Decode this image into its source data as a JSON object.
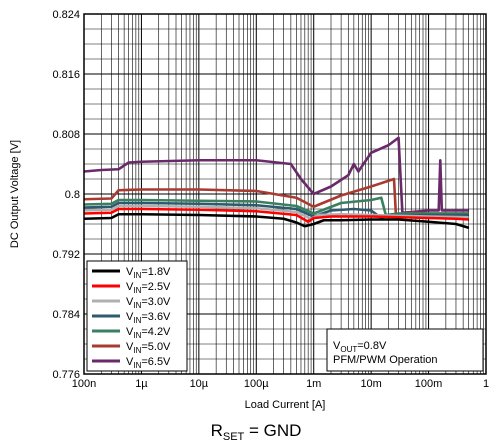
{
  "chart_data": {
    "type": "line",
    "title": "",
    "caption": {
      "main": "R",
      "sub": "SET",
      "rest": " = GND"
    },
    "xlabel": "Load Current [A]",
    "ylabel": "DC Output Voltage [V]",
    "xscale": "log",
    "xlim": [
      1e-07,
      1
    ],
    "ylim": [
      0.776,
      0.824
    ],
    "yticks": [
      {
        "value": 0.776,
        "label": "0.776"
      },
      {
        "value": 0.784,
        "label": "0.784"
      },
      {
        "value": 0.792,
        "label": "0.792"
      },
      {
        "value": 0.8,
        "label": "0.8"
      },
      {
        "value": 0.808,
        "label": "0.808"
      },
      {
        "value": 0.816,
        "label": "0.816"
      },
      {
        "value": 0.824,
        "label": "0.824"
      }
    ],
    "xticks": [
      {
        "value": 1e-07,
        "label": "100n"
      },
      {
        "value": 1e-06,
        "label": "1µ"
      },
      {
        "value": 1e-05,
        "label": "10µ"
      },
      {
        "value": 0.0001,
        "label": "100µ"
      },
      {
        "value": 0.001,
        "label": "1m"
      },
      {
        "value": 0.01,
        "label": "10m"
      },
      {
        "value": 0.1,
        "label": "100m"
      },
      {
        "value": 1,
        "label": "1"
      }
    ],
    "grid": true,
    "legend_position": "bottom-left",
    "series": [
      {
        "name": {
          "main": "V",
          "sub": "IN",
          "rest": "=1.8V"
        },
        "color": "#000000",
        "points": [
          [
            1e-07,
            0.7967
          ],
          [
            3e-07,
            0.7968
          ],
          [
            4e-07,
            0.7973
          ],
          [
            1e-06,
            0.7973
          ],
          [
            1e-05,
            0.7972
          ],
          [
            0.0001,
            0.797
          ],
          [
            0.0003,
            0.7967
          ],
          [
            0.0005,
            0.7962
          ],
          [
            0.0007,
            0.7957
          ],
          [
            0.001,
            0.796
          ],
          [
            0.0015,
            0.7965
          ],
          [
            0.003,
            0.7965
          ],
          [
            0.01,
            0.7966
          ],
          [
            0.03,
            0.7966
          ],
          [
            0.1,
            0.7963
          ],
          [
            0.3,
            0.796
          ],
          [
            0.5,
            0.7955
          ]
        ]
      },
      {
        "name": {
          "main": "V",
          "sub": "IN",
          "rest": "=2.5V"
        },
        "color": "#ff0000",
        "points": [
          [
            1e-07,
            0.7974
          ],
          [
            3e-07,
            0.7975
          ],
          [
            4e-07,
            0.798
          ],
          [
            1e-06,
            0.798
          ],
          [
            1e-05,
            0.7979
          ],
          [
            0.0001,
            0.7977
          ],
          [
            0.0005,
            0.7972
          ],
          [
            0.0008,
            0.7963
          ],
          [
            0.001,
            0.7968
          ],
          [
            0.002,
            0.797
          ],
          [
            0.01,
            0.797
          ],
          [
            0.1,
            0.7968
          ],
          [
            0.3,
            0.7967
          ],
          [
            0.5,
            0.7966
          ]
        ]
      },
      {
        "name": {
          "main": "V",
          "sub": "IN",
          "rest": "=3.0V"
        },
        "color": "#b0b0b0",
        "points": [
          [
            1e-07,
            0.7978
          ],
          [
            3e-07,
            0.7979
          ],
          [
            4e-07,
            0.7984
          ],
          [
            1e-06,
            0.7984
          ],
          [
            1e-05,
            0.7983
          ],
          [
            0.0001,
            0.7981
          ],
          [
            0.0005,
            0.7976
          ],
          [
            0.0009,
            0.7967
          ],
          [
            0.0012,
            0.7972
          ],
          [
            0.003,
            0.7973
          ],
          [
            0.01,
            0.7972
          ],
          [
            0.1,
            0.797
          ],
          [
            0.5,
            0.7969
          ]
        ]
      },
      {
        "name": {
          "main": "V",
          "sub": "IN",
          "rest": "=3.6V"
        },
        "color": "#2f5a6e",
        "points": [
          [
            1e-07,
            0.7982
          ],
          [
            3e-07,
            0.7983
          ],
          [
            4e-07,
            0.7988
          ],
          [
            1e-06,
            0.7988
          ],
          [
            1e-05,
            0.7987
          ],
          [
            0.0001,
            0.7985
          ],
          [
            0.0005,
            0.798
          ],
          [
            0.001,
            0.797
          ],
          [
            0.002,
            0.7978
          ],
          [
            0.005,
            0.798
          ],
          [
            0.01,
            0.7978
          ],
          [
            0.015,
            0.7968
          ],
          [
            0.02,
            0.7972
          ],
          [
            0.1,
            0.7972
          ],
          [
            0.5,
            0.7972
          ]
        ]
      },
      {
        "name": {
          "main": "V",
          "sub": "IN",
          "rest": "=4.2V"
        },
        "color": "#3a8060",
        "points": [
          [
            1e-07,
            0.7986
          ],
          [
            3e-07,
            0.7987
          ],
          [
            4e-07,
            0.7992
          ],
          [
            1e-06,
            0.7992
          ],
          [
            1e-05,
            0.7991
          ],
          [
            0.0001,
            0.799
          ],
          [
            0.0005,
            0.7984
          ],
          [
            0.001,
            0.7974
          ],
          [
            0.003,
            0.7988
          ],
          [
            0.01,
            0.7992
          ],
          [
            0.015,
            0.7995
          ],
          [
            0.018,
            0.7972
          ],
          [
            0.03,
            0.7974
          ],
          [
            0.1,
            0.7974
          ],
          [
            0.5,
            0.7974
          ]
        ]
      },
      {
        "name": {
          "main": "V",
          "sub": "IN",
          "rest": "=5.0V"
        },
        "color": "#a83a30",
        "points": [
          [
            1e-07,
            0.7993
          ],
          [
            3e-07,
            0.7994
          ],
          [
            4e-07,
            0.8005
          ],
          [
            1e-06,
            0.8006
          ],
          [
            1e-05,
            0.8006
          ],
          [
            0.0001,
            0.8004
          ],
          [
            0.0005,
            0.7995
          ],
          [
            0.001,
            0.7983
          ],
          [
            0.003,
            0.7998
          ],
          [
            0.01,
            0.801
          ],
          [
            0.025,
            0.802
          ],
          [
            0.027,
            0.7972
          ],
          [
            0.05,
            0.7975
          ],
          [
            0.1,
            0.7974
          ],
          [
            0.5,
            0.7974
          ]
        ]
      },
      {
        "name": {
          "main": "V",
          "sub": "IN",
          "rest": "=6.5V"
        },
        "color": "#6a2a6a",
        "points": [
          [
            1e-07,
            0.803
          ],
          [
            2e-07,
            0.8032
          ],
          [
            4e-07,
            0.8033
          ],
          [
            6e-07,
            0.8042
          ],
          [
            1e-06,
            0.8043
          ],
          [
            1e-05,
            0.8045
          ],
          [
            0.0001,
            0.8045
          ],
          [
            0.0004,
            0.804
          ],
          [
            0.0006,
            0.802
          ],
          [
            0.001,
            0.8
          ],
          [
            0.002,
            0.801
          ],
          [
            0.004,
            0.8025
          ],
          [
            0.005,
            0.804
          ],
          [
            0.006,
            0.803
          ],
          [
            0.01,
            0.8055
          ],
          [
            0.02,
            0.8065
          ],
          [
            0.03,
            0.8075
          ],
          [
            0.035,
            0.7975
          ],
          [
            0.1,
            0.7978
          ],
          [
            0.15,
            0.7978
          ],
          [
            0.16,
            0.8045
          ],
          [
            0.17,
            0.7978
          ],
          [
            0.5,
            0.7978
          ]
        ]
      }
    ],
    "annotation": {
      "line1": {
        "main": "V",
        "sub": "OUT",
        "rest": "=0.8V"
      },
      "line2": "PFM/PWM Operation"
    }
  }
}
